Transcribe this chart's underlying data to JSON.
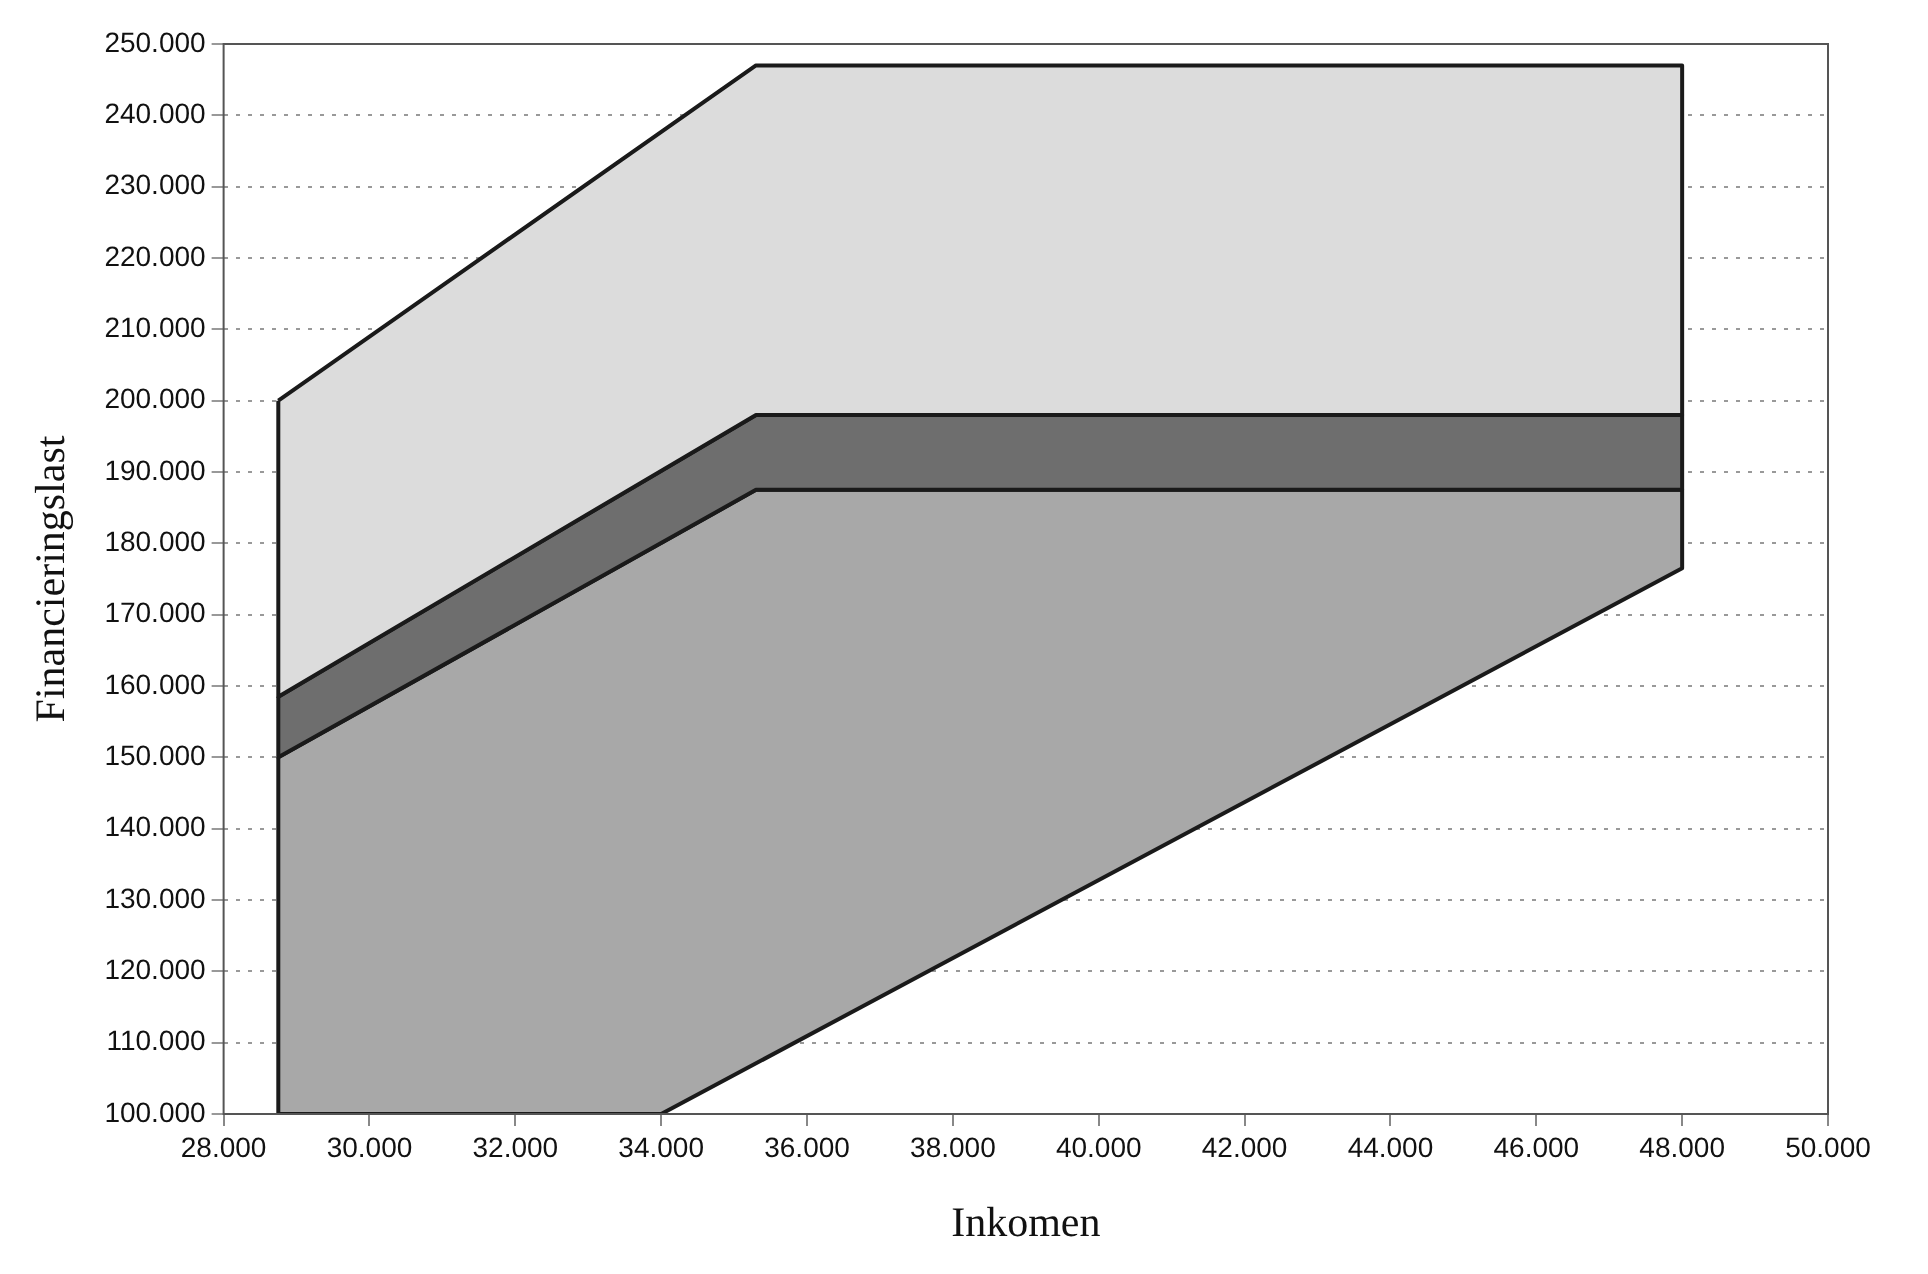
{
  "chart_data": {
    "type": "area",
    "xlabel": "Inkomen",
    "ylabel": "Financieringslast",
    "xlim": [
      28000,
      50000
    ],
    "ylim": [
      100000,
      250000
    ],
    "xticks": [
      {
        "value": 28000,
        "label": "28.000"
      },
      {
        "value": 30000,
        "label": "30.000"
      },
      {
        "value": 32000,
        "label": "32.000"
      },
      {
        "value": 34000,
        "label": "34.000"
      },
      {
        "value": 36000,
        "label": "36.000"
      },
      {
        "value": 38000,
        "label": "38.000"
      },
      {
        "value": 40000,
        "label": "40.000"
      },
      {
        "value": 42000,
        "label": "42.000"
      },
      {
        "value": 44000,
        "label": "44.000"
      },
      {
        "value": 46000,
        "label": "46.000"
      },
      {
        "value": 48000,
        "label": "48.000"
      },
      {
        "value": 50000,
        "label": "50.000"
      }
    ],
    "yticks": [
      {
        "value": 100000,
        "label": "100.000"
      },
      {
        "value": 110000,
        "label": "110.000"
      },
      {
        "value": 120000,
        "label": "120.000"
      },
      {
        "value": 130000,
        "label": "130.000"
      },
      {
        "value": 140000,
        "label": "140.000"
      },
      {
        "value": 150000,
        "label": "150.000"
      },
      {
        "value": 160000,
        "label": "160.000"
      },
      {
        "value": 170000,
        "label": "170.000"
      },
      {
        "value": 180000,
        "label": "180.000"
      },
      {
        "value": 190000,
        "label": "190.000"
      },
      {
        "value": 200000,
        "label": "200.000"
      },
      {
        "value": 210000,
        "label": "210.000"
      },
      {
        "value": 220000,
        "label": "220.000"
      },
      {
        "value": 230000,
        "label": "230.000"
      },
      {
        "value": 240000,
        "label": "240.000"
      },
      {
        "value": 250000,
        "label": "250.000"
      }
    ],
    "grid": "y",
    "legend": false,
    "series": [
      {
        "type": "area",
        "color": "#dcdcdc",
        "x": [
          28750,
          35300,
          48000,
          48000,
          35300,
          28750,
          28750
        ],
        "values": [
          200000,
          247000,
          247000,
          198000,
          198000,
          158500,
          200000
        ]
      },
      {
        "type": "area",
        "color": "#6e6e6e",
        "x": [
          28750,
          35300,
          48000,
          48000,
          35300,
          28750,
          28750
        ],
        "values": [
          158500,
          198000,
          198000,
          187500,
          187500,
          150000,
          158500
        ]
      },
      {
        "type": "area",
        "color": "#a8a8a8",
        "x": [
          28750,
          35300,
          48000,
          48000,
          34000,
          28750,
          28750
        ],
        "values": [
          150000,
          187500,
          187500,
          176500,
          100000,
          100000,
          150000
        ]
      }
    ]
  }
}
